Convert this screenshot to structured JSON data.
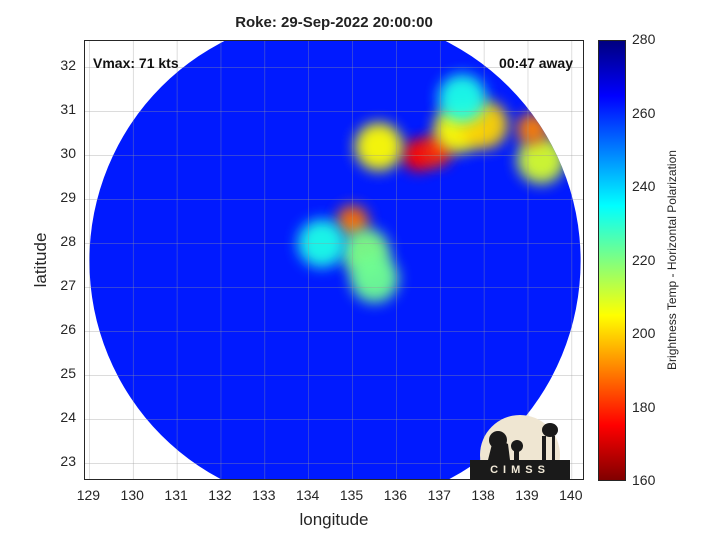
{
  "chart_data": {
    "type": "heatmap",
    "title": "Roke: 29-Sep-2022 20:00:00",
    "annotations": {
      "vmax": "Vmax: 71 kts",
      "away": "00:47 away"
    },
    "xlabel": "longitude",
    "ylabel": "latitude",
    "xlim": [
      128.9,
      140.3
    ],
    "ylim": [
      22.6,
      32.6
    ],
    "xticks": [
      129,
      130,
      131,
      132,
      133,
      134,
      135,
      136,
      137,
      138,
      139,
      140
    ],
    "yticks": [
      23,
      24,
      25,
      26,
      27,
      28,
      29,
      30,
      31,
      32
    ],
    "grid": true,
    "colorbar": {
      "label": "Brightness Temp - Horizontal Polarization",
      "range": [
        160,
        280
      ],
      "ticks": [
        160,
        180,
        200,
        220,
        240,
        260,
        280
      ],
      "colors": [
        "#800000",
        "#ff0000",
        "#ff8000",
        "#ffff00",
        "#80ff80",
        "#00ffff",
        "#0080ff",
        "#0000ff",
        "#000080"
      ]
    },
    "swath": {
      "center": [
        134.6,
        27.6
      ],
      "radius_deg": 5.6,
      "background_value": 262
    },
    "features": [
      {
        "lon": 136.5,
        "lat": 30.0,
        "value": 175
      },
      {
        "lon": 136.9,
        "lat": 30.1,
        "value": 180
      },
      {
        "lon": 137.4,
        "lat": 30.6,
        "value": 205
      },
      {
        "lon": 138.0,
        "lat": 30.7,
        "value": 200
      },
      {
        "lon": 135.6,
        "lat": 30.2,
        "value": 205
      },
      {
        "lon": 139.3,
        "lat": 29.9,
        "value": 210
      },
      {
        "lon": 139.1,
        "lat": 30.6,
        "value": 190
      },
      {
        "lon": 137.5,
        "lat": 31.3,
        "value": 232
      },
      {
        "lon": 135.0,
        "lat": 28.5,
        "value": 188
      },
      {
        "lon": 135.3,
        "lat": 27.8,
        "value": 220
      },
      {
        "lon": 134.3,
        "lat": 28.0,
        "value": 232
      },
      {
        "lon": 135.5,
        "lat": 27.2,
        "value": 222
      }
    ],
    "logo": "CIMSS"
  }
}
